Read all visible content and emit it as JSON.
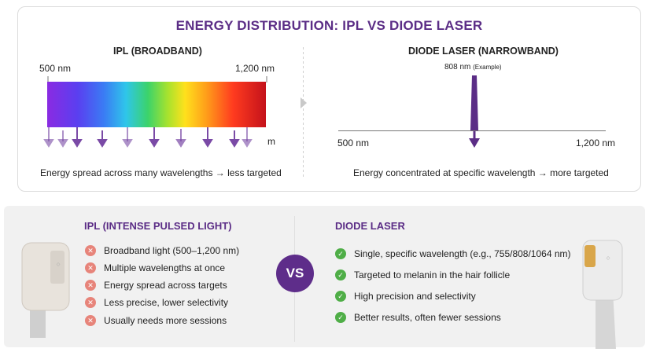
{
  "title": "ENERGY DISTRIBUTION: IPL VS DIODE LASER",
  "ipl_panel": {
    "title": "IPL (BROADBAND)",
    "min_label": "500 nm",
    "max_label": "1,200 nm",
    "axis_unit_fragment": "m",
    "caption": "Energy spread across many wavelengths → less targeted"
  },
  "diode_panel": {
    "title": "DIODE LASER (NARROWBAND)",
    "peak_label": "808 nm",
    "peak_note": "(Example)",
    "min_label": "500 nm",
    "max_label": "1,200 nm",
    "caption": "Energy concentrated at specific wavelength → more targeted"
  },
  "ipl_section": {
    "title": "IPL (INTENSE PULSED LIGHT)",
    "items": [
      "Broadband light (500–1,200 nm)",
      "Multiple wavelengths at once",
      "Energy spread across targets",
      "Less precise, lower selectivity",
      "Usually needs more sessions"
    ]
  },
  "vs_label": "VS",
  "diode_section": {
    "title": "DIODE LASER",
    "items": [
      "Single, specific wavelength (e.g., 755/808/1064 nm)",
      "Targeted to melanin in the hair follicle",
      "High precision and selectivity",
      "Better results, often fewer sessions"
    ]
  },
  "icons": {
    "con": "x-icon",
    "pro": "check-icon"
  },
  "colors": {
    "accent": "#5b2d86",
    "con": "#e7847a",
    "pro": "#4fae47"
  }
}
